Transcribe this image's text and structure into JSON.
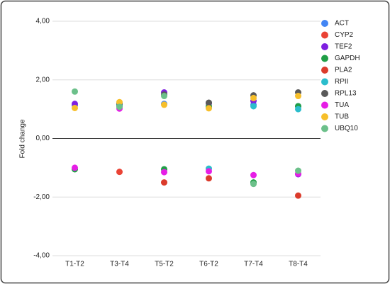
{
  "chart_data": {
    "type": "scatter",
    "ylabel": "Fold change",
    "categories": [
      "T1-T2",
      "T3-T4",
      "T5-T2",
      "T6-T2",
      "T7-T4",
      "T8-T4"
    ],
    "series": [
      {
        "name": "ACT",
        "color": "#4285f4",
        "values": [
          1.13,
          1.15,
          1.18,
          1.05,
          1.15,
          1.1
        ]
      },
      {
        "name": "CYP2",
        "color": "#ea4335",
        "values": [
          null,
          -1.14,
          null,
          null,
          null,
          null
        ]
      },
      {
        "name": "TEF2",
        "color": "#7e1fe0",
        "values": [
          1.18,
          1.12,
          1.57,
          1.2,
          1.28,
          -1.22
        ]
      },
      {
        "name": "GAPDH",
        "color": "#1f9e46",
        "values": [
          -1.05,
          1.1,
          -1.05,
          1.1,
          -1.5,
          1.1
        ]
      },
      {
        "name": "PLA2",
        "color": "#db3b2b",
        "values": [
          null,
          null,
          -1.5,
          -1.36,
          null,
          -1.95
        ]
      },
      {
        "name": "RPII",
        "color": "#2bbdcc",
        "values": [
          null,
          1.15,
          null,
          -1.03,
          1.1,
          1.0
        ]
      },
      {
        "name": "RPL13",
        "color": "#595959",
        "values": [
          null,
          1.2,
          1.5,
          1.22,
          1.47,
          1.57
        ]
      },
      {
        "name": "TUA",
        "color": "#e61ee6",
        "values": [
          -1.0,
          1.02,
          -1.15,
          -1.12,
          -1.25,
          -1.2
        ]
      },
      {
        "name": "TUB",
        "color": "#f7bf2a",
        "values": [
          1.04,
          1.24,
          1.15,
          1.03,
          1.38,
          1.45
        ]
      },
      {
        "name": "UBQ10",
        "color": "#6cc08a",
        "values": [
          1.6,
          1.08,
          1.45,
          null,
          -1.55,
          -1.1
        ]
      }
    ],
    "ylim": [
      -4,
      4
    ],
    "yticks": [
      {
        "value": -4,
        "label": "-4,00"
      },
      {
        "value": -2,
        "label": "-2,00"
      },
      {
        "value": 0,
        "label": "0,00"
      },
      {
        "value": 2,
        "label": "2,00"
      },
      {
        "value": 4,
        "label": "4,00"
      }
    ],
    "grid": true,
    "legend": "right"
  }
}
